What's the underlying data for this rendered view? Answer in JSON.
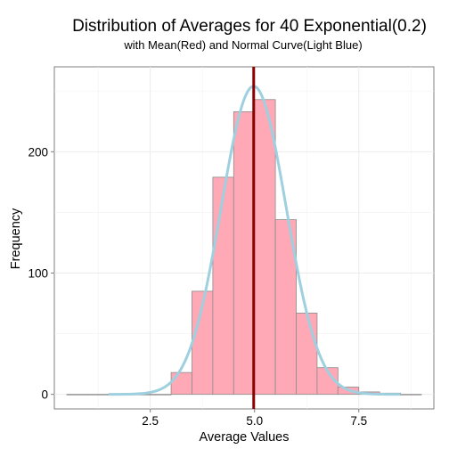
{
  "chart_data": {
    "type": "bar",
    "title": "Distribution of Averages for 40 Exponential(0.2)",
    "subtitle": "with Mean(Red) and Normal Curve(Light Blue)",
    "xlabel": "Average Values",
    "ylabel": "Frequency",
    "xlim": [
      0.2,
      9.3
    ],
    "ylim": [
      -12,
      270
    ],
    "x_ticks": [
      2.5,
      5.0,
      7.5
    ],
    "x_tick_labels": [
      "2.5",
      "5.0",
      "7.5"
    ],
    "y_ticks": [
      0,
      100,
      200
    ],
    "y_tick_labels": [
      "0",
      "100",
      "200"
    ],
    "grid": true,
    "bins": [
      {
        "x0": 0.5,
        "x1": 1.0,
        "count": 0
      },
      {
        "x0": 1.0,
        "x1": 1.5,
        "count": 0
      },
      {
        "x0": 1.5,
        "x1": 2.0,
        "count": 0
      },
      {
        "x0": 2.0,
        "x1": 2.5,
        "count": 0
      },
      {
        "x0": 2.5,
        "x1": 3.0,
        "count": 0
      },
      {
        "x0": 3.0,
        "x1": 3.5,
        "count": 18
      },
      {
        "x0": 3.5,
        "x1": 4.0,
        "count": 85
      },
      {
        "x0": 4.0,
        "x1": 4.5,
        "count": 179
      },
      {
        "x0": 4.5,
        "x1": 5.0,
        "count": 233
      },
      {
        "x0": 5.0,
        "x1": 5.5,
        "count": 243
      },
      {
        "x0": 5.5,
        "x1": 6.0,
        "count": 144
      },
      {
        "x0": 6.0,
        "x1": 6.5,
        "count": 67
      },
      {
        "x0": 6.5,
        "x1": 7.0,
        "count": 22
      },
      {
        "x0": 7.0,
        "x1": 7.5,
        "count": 6
      },
      {
        "x0": 7.5,
        "x1": 8.0,
        "count": 2
      },
      {
        "x0": 8.0,
        "x1": 8.5,
        "count": 1
      },
      {
        "x0": 8.5,
        "x1": 9.0,
        "count": 0
      }
    ],
    "mean_line": {
      "x": 4.98,
      "color": "#8b0000"
    },
    "normal_curve": {
      "mean": 4.98,
      "sd": 0.78,
      "peak": 254,
      "x_range": [
        1.5,
        8.5
      ],
      "color": "#9ed0df"
    },
    "bar_fill": "#ffa8b6",
    "bar_stroke": "#8c8c8c"
  }
}
